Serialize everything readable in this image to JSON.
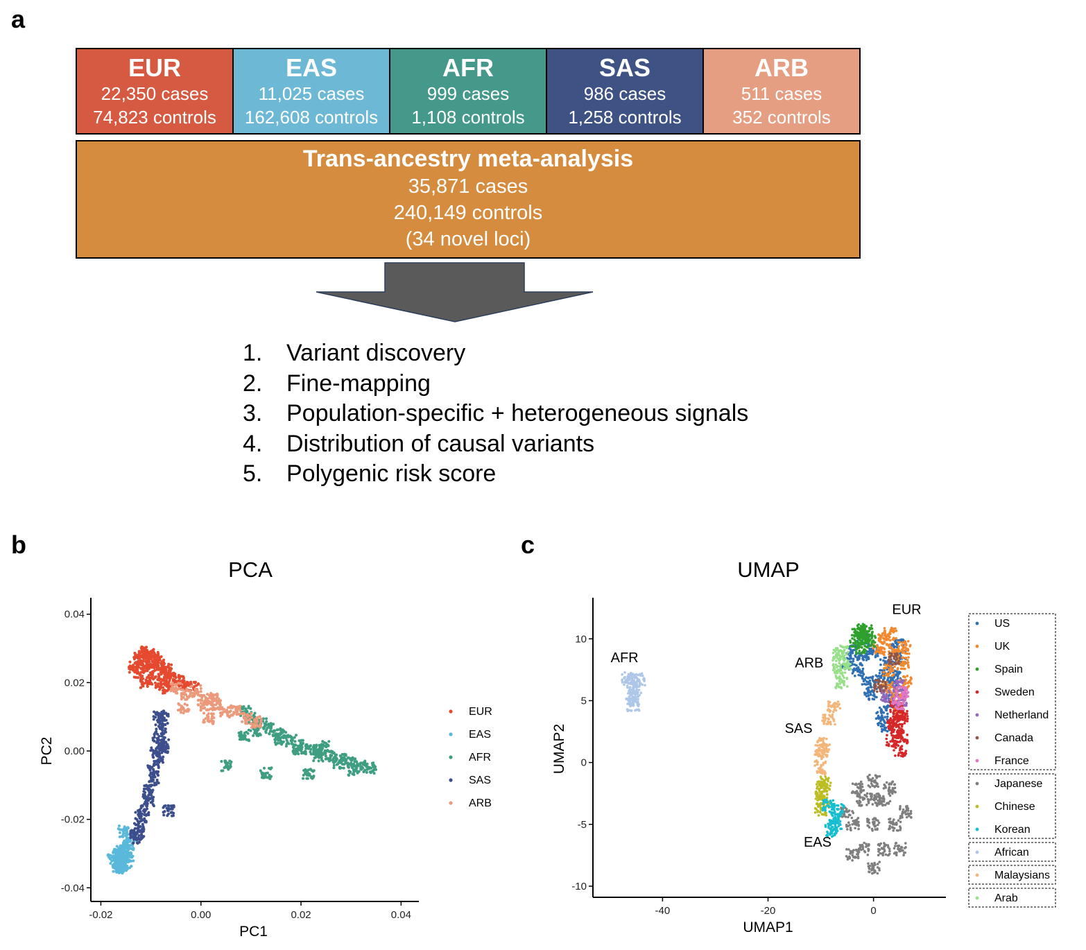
{
  "panels": {
    "a": "a",
    "b": "b",
    "c": "c"
  },
  "cohorts": [
    {
      "name": "EUR",
      "cases": "22,350 cases",
      "controls": "74,823 controls",
      "color": "#d65a42"
    },
    {
      "name": "EAS",
      "cases": "11,025 cases",
      "controls": "162,608 controls",
      "color": "#6db9d5"
    },
    {
      "name": "AFR",
      "cases": "999 cases",
      "controls": "1,108 controls",
      "color": "#44998a"
    },
    {
      "name": "SAS",
      "cases": "986 cases",
      "controls": "1,258 controls",
      "color": "#3f5284"
    },
    {
      "name": "ARB",
      "cases": "511 cases",
      "controls": "352 controls",
      "color": "#e69e82"
    }
  ],
  "meta": {
    "title": "Trans-ancestry meta-analysis",
    "cases": "35,871 cases",
    "controls": "240,149 controls",
    "loci": "(34 novel loci)"
  },
  "steps": [
    {
      "num": "1.",
      "text": "Variant discovery"
    },
    {
      "num": "2.",
      "text": "Fine-mapping"
    },
    {
      "num": "3.",
      "text": "Population-specific + heterogeneous signals"
    },
    {
      "num": "4.",
      "text": "Distribution of causal variants"
    },
    {
      "num": "5.",
      "text": "Polygenic risk score"
    }
  ],
  "chart_data": [
    {
      "type": "scatter",
      "title": "PCA",
      "xlabel": "PC1",
      "ylabel": "PC2",
      "xlim": [
        -0.022,
        0.043
      ],
      "ylim": [
        -0.044,
        0.044
      ],
      "xticks": [
        -0.02,
        0.0,
        0.02,
        0.04
      ],
      "xtick_labels": [
        "-0.02",
        "0.00",
        "0.02",
        "0.04"
      ],
      "yticks": [
        -0.04,
        -0.02,
        0.0,
        0.02,
        0.04
      ],
      "ytick_labels": [
        "-0.04",
        "-0.02",
        "0.00",
        "0.02",
        "0.04"
      ],
      "grid": false,
      "legend_position": "right",
      "series": [
        {
          "name": "EUR",
          "color": "#e5492e",
          "points": [
            [
              -0.0115,
              0.029
            ],
            [
              -0.0125,
              0.027
            ],
            [
              -0.011,
              0.026
            ],
            [
              -0.0095,
              0.0275
            ],
            [
              -0.0085,
              0.025
            ],
            [
              -0.0105,
              0.024
            ],
            [
              -0.0125,
              0.023
            ],
            [
              -0.0135,
              0.0245
            ],
            [
              -0.0075,
              0.023
            ],
            [
              -0.006,
              0.0215
            ],
            [
              -0.0045,
              0.0205
            ],
            [
              -0.0095,
              0.021
            ],
            [
              -0.011,
              0.02
            ],
            [
              -0.008,
              0.0195
            ],
            [
              -0.003,
              0.019
            ],
            [
              -0.0015,
              0.0185
            ],
            [
              -0.0065,
              0.0185
            ],
            [
              -0.0105,
              0.0285
            ],
            [
              -0.009,
              0.0265
            ],
            [
              -0.007,
              0.0245
            ]
          ]
        },
        {
          "name": "EAS",
          "color": "#5ab9da",
          "points": [
            [
              -0.0165,
              -0.0305
            ],
            [
              -0.0155,
              -0.032
            ],
            [
              -0.017,
              -0.0325
            ],
            [
              -0.016,
              -0.034
            ],
            [
              -0.015,
              -0.0295
            ],
            [
              -0.0145,
              -0.0275
            ],
            [
              -0.0155,
              -0.0285
            ],
            [
              -0.0175,
              -0.0315
            ],
            [
              -0.0165,
              -0.0345
            ],
            [
              -0.0145,
              -0.031
            ],
            [
              -0.014,
              -0.0255
            ],
            [
              -0.0155,
              -0.0235
            ],
            [
              -0.015,
              -0.0335
            ],
            [
              -0.0162,
              -0.0295
            ]
          ]
        },
        {
          "name": "AFR",
          "color": "#3f9e82",
          "points": [
            [
              0.034,
              -0.005
            ],
            [
              0.032,
              -0.0045
            ],
            [
              0.03,
              -0.0035
            ],
            [
              0.028,
              -0.0025
            ],
            [
              0.026,
              -0.0015
            ],
            [
              0.024,
              -0.0005
            ],
            [
              0.022,
              0.0005
            ],
            [
              0.02,
              0.0015
            ],
            [
              0.018,
              0.003
            ],
            [
              0.016,
              0.005
            ],
            [
              0.014,
              0.0065
            ],
            [
              0.012,
              0.008
            ],
            [
              0.01,
              0.0095
            ],
            [
              0.009,
              0.0115
            ],
            [
              0.0305,
              -0.0055
            ],
            [
              0.0275,
              -0.0035
            ],
            [
              0.0235,
              -0.0015
            ],
            [
              0.0195,
              0.0005
            ],
            [
              0.0155,
              0.0035
            ],
            [
              0.011,
              0.0055
            ],
            [
              0.0085,
              0.0045
            ],
            [
              0.005,
              -0.0045
            ],
            [
              0.013,
              -0.0065
            ],
            [
              0.0215,
              -0.0065
            ],
            [
              0.0245,
              0.0015
            ]
          ]
        },
        {
          "name": "SAS",
          "color": "#3c4e8c",
          "points": [
            [
              -0.0075,
              0.0095
            ],
            [
              -0.008,
              0.0065
            ],
            [
              -0.0085,
              0.0035
            ],
            [
              -0.0075,
              0.0005
            ],
            [
              -0.0085,
              -0.0025
            ],
            [
              -0.0095,
              -0.0055
            ],
            [
              -0.0095,
              -0.0085
            ],
            [
              -0.0105,
              -0.0115
            ],
            [
              -0.0105,
              -0.0145
            ],
            [
              -0.0115,
              -0.0175
            ],
            [
              -0.012,
              -0.0195
            ],
            [
              -0.0125,
              -0.0225
            ],
            [
              -0.013,
              -0.0245
            ],
            [
              -0.0075,
              0.0025
            ],
            [
              -0.009,
              -0.0005
            ],
            [
              -0.0065,
              -0.0175
            ],
            [
              -0.0125,
              -0.0255
            ],
            [
              -0.0085,
              0.0105
            ]
          ]
        },
        {
          "name": "ARB",
          "color": "#ec9a7c",
          "points": [
            [
              -0.001,
              0.0175
            ],
            [
              0.001,
              0.0155
            ],
            [
              0.003,
              0.0135
            ],
            [
              0.005,
              0.0115
            ],
            [
              0.007,
              0.012
            ],
            [
              0.0025,
              0.0155
            ],
            [
              -0.003,
              0.0165
            ],
            [
              -0.005,
              0.0185
            ],
            [
              0.009,
              0.0095
            ],
            [
              0.011,
              0.0085
            ],
            [
              -0.0035,
              0.0125
            ],
            [
              0.0015,
              0.0095
            ],
            [
              0.0005,
              0.0135
            ]
          ]
        }
      ]
    },
    {
      "type": "scatter",
      "title": "UMAP",
      "xlabel": "UMAP1",
      "ylabel": "UMAP2",
      "xlim": [
        -53.2,
        13.2
      ],
      "ylim": [
        -10.9,
        13.1
      ],
      "xticks": [
        -40,
        -20,
        0
      ],
      "xtick_labels": [
        "-40",
        "-20",
        "0"
      ],
      "yticks": [
        -10,
        -5,
        0,
        5,
        10
      ],
      "ytick_labels": [
        "-10",
        "-5",
        "0",
        "5",
        "10"
      ],
      "grid": false,
      "legend_position": "right",
      "annotations": [
        {
          "text": "EUR",
          "x": 6.3,
          "y": 12.0
        },
        {
          "text": "ARB",
          "x": -12.2,
          "y": 7.7
        },
        {
          "text": "AFR",
          "x": -47.2,
          "y": 8.1
        },
        {
          "text": "SAS",
          "x": -14.2,
          "y": 2.4
        },
        {
          "text": "EAS",
          "x": -10.6,
          "y": -6.8
        }
      ],
      "legend_groups": [
        [
          "US",
          "UK",
          "Spain",
          "Sweden",
          "Netherland",
          "Canada",
          "France"
        ],
        [
          "Japanese",
          "Chinese",
          "Korean"
        ],
        [
          "African"
        ],
        [
          "Malaysians"
        ],
        [
          "Arab"
        ]
      ],
      "series": [
        {
          "name": "US",
          "color": "#2f6fb4",
          "points": [
            [
              -4,
              9
            ],
            [
              -2,
              8.5
            ],
            [
              -3,
              7.5
            ],
            [
              -1,
              6.5
            ],
            [
              1,
              7
            ],
            [
              0,
              9
            ],
            [
              2.5,
              8
            ],
            [
              4,
              7
            ],
            [
              3,
              5
            ],
            [
              1.5,
              4
            ],
            [
              -5,
              8
            ],
            [
              -2,
              10
            ],
            [
              3.5,
              6.5
            ],
            [
              2,
              3
            ],
            [
              -0.5,
              5.5
            ],
            [
              5,
              8.5
            ],
            [
              4.5,
              9.5
            ]
          ]
        },
        {
          "name": "UK",
          "color": "#f2892e",
          "points": [
            [
              2,
              10
            ],
            [
              4,
              9
            ],
            [
              5.5,
              8
            ],
            [
              3,
              7.5
            ],
            [
              4.5,
              5.5
            ],
            [
              6,
              6.5
            ],
            [
              2.5,
              6
            ],
            [
              5,
              4
            ],
            [
              1,
              9.2
            ],
            [
              3.2,
              10.4
            ],
            [
              5.8,
              9.3
            ]
          ]
        },
        {
          "name": "Spain",
          "color": "#2ea02c",
          "points": [
            [
              -3,
              10.5
            ],
            [
              -1.5,
              10.2
            ],
            [
              -2.2,
              9.3
            ],
            [
              -0.8,
              9.8
            ],
            [
              -2.5,
              10.7
            ],
            [
              -1.2,
              10.6
            ],
            [
              -3.4,
              9.8
            ]
          ]
        },
        {
          "name": "Sweden",
          "color": "#d62728",
          "points": [
            [
              4.5,
              2.5
            ],
            [
              5,
              1
            ],
            [
              4.8,
              3.5
            ],
            [
              3.8,
              3.2
            ],
            [
              5.3,
              2
            ],
            [
              4.3,
              4.5
            ],
            [
              3.6,
              1.8
            ],
            [
              5.5,
              3.8
            ]
          ]
        },
        {
          "name": "Netherland",
          "color": "#9467bd",
          "points": [
            [
              4.9,
              6.2
            ],
            [
              5.1,
              5.1
            ],
            [
              2.6,
              5.4
            ]
          ]
        },
        {
          "name": "Canada",
          "color": "#8c564b",
          "points": [
            [
              1.2,
              6.2
            ],
            [
              3.9,
              8.4
            ]
          ]
        },
        {
          "name": "France",
          "color": "#e377c2",
          "points": [
            [
              4.7,
              4.8
            ],
            [
              5.4,
              5.6
            ]
          ]
        },
        {
          "name": "Japanese",
          "color": "#7f7f7f",
          "points": [
            [
              0,
              -1.5
            ],
            [
              -2,
              -3
            ],
            [
              2,
              -3
            ],
            [
              -4,
              -5
            ],
            [
              0,
              -5
            ],
            [
              4,
              -5
            ],
            [
              -2,
              -7
            ],
            [
              2,
              -7
            ],
            [
              0,
              -8.5
            ],
            [
              -5,
              -4
            ],
            [
              6,
              -4
            ],
            [
              5,
              -7
            ],
            [
              -4,
              -7.5
            ],
            [
              0,
              -3
            ],
            [
              3,
              -2
            ],
            [
              -3,
              -2
            ]
          ]
        },
        {
          "name": "Chinese",
          "color": "#bcbd22",
          "points": [
            [
              -9.8,
              -2.5
            ],
            [
              -9.5,
              -3.2
            ],
            [
              -9.9,
              -3.8
            ],
            [
              -9.3,
              -2.1
            ],
            [
              -9.6,
              -1.6
            ]
          ]
        },
        {
          "name": "Korean",
          "color": "#17becf",
          "points": [
            [
              -8.5,
              -3.5
            ],
            [
              -7.5,
              -4.5
            ],
            [
              -8,
              -5.5
            ],
            [
              -6.8,
              -3.8
            ],
            [
              -7.2,
              -5.2
            ]
          ]
        },
        {
          "name": "African",
          "color": "#aec7e8",
          "points": [
            [
              -46,
              6.5
            ],
            [
              -45.5,
              6
            ],
            [
              -45.8,
              5.2
            ],
            [
              -45.5,
              4.6
            ],
            [
              -46.5,
              6.8
            ],
            [
              -44.5,
              6.7
            ],
            [
              -45.2,
              5.6
            ]
          ]
        },
        {
          "name": "Malaysians",
          "color": "#f3b67a",
          "points": [
            [
              -7.5,
              4.5
            ],
            [
              -8.5,
              3.5
            ],
            [
              -9.5,
              1.5
            ],
            [
              -10,
              0.5
            ],
            [
              -10.2,
              -0.5
            ],
            [
              -9.8,
              1
            ]
          ]
        },
        {
          "name": "Arab",
          "color": "#98df8a",
          "points": [
            [
              -6,
              9
            ],
            [
              -5.5,
              8
            ],
            [
              -6.5,
              7.5
            ],
            [
              -6,
              6.5
            ],
            [
              -6.6,
              8.7
            ]
          ]
        }
      ]
    }
  ]
}
